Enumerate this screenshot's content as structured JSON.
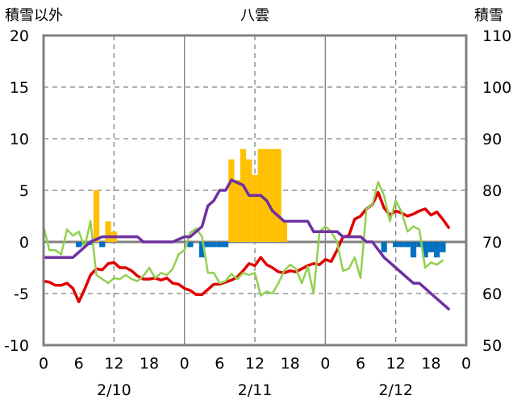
{
  "chart_data": {
    "type": "bar+line",
    "title": "八雲",
    "left_axis_label": "積雪以外",
    "right_axis_label": "積雪",
    "left_ylim": [
      -10,
      20
    ],
    "left_ticks": [
      20,
      15,
      10,
      5,
      0,
      -5,
      -10
    ],
    "right_ylim": [
      50,
      110
    ],
    "right_ticks": [
      110,
      100,
      90,
      80,
      70,
      60,
      50
    ],
    "x_hours": [
      0,
      72
    ],
    "x_tick_labels": [
      "0",
      "6",
      "12",
      "18",
      "0",
      "6",
      "12",
      "18",
      "0",
      "6",
      "12",
      "18",
      "0"
    ],
    "day_labels": [
      "2/10",
      "2/11",
      "2/12"
    ],
    "grid": "dashed vertical at 12h, solid day separators at 24h",
    "colors": {
      "precip_positive": "#FFC000",
      "precip_negative": "#0070C0",
      "red_line": "#E00000",
      "green_line": "#92D050",
      "purple_line": "#7030A0",
      "frame": "#808080"
    },
    "bars": [
      {
        "x": 6,
        "v": -0.5
      },
      {
        "x": 7,
        "v": -0.3
      },
      {
        "x": 8,
        "v": -0.3
      },
      {
        "x": 9,
        "v": 5
      },
      {
        "x": 10,
        "v": -0.5
      },
      {
        "x": 11,
        "v": 2
      },
      {
        "x": 12,
        "v": 1
      },
      {
        "x": 25,
        "v": -0.5
      },
      {
        "x": 27,
        "v": -1.5
      },
      {
        "x": 28,
        "v": -0.5
      },
      {
        "x": 29,
        "v": -0.5
      },
      {
        "x": 30,
        "v": -0.5
      },
      {
        "x": 31,
        "v": -0.5
      },
      {
        "x": 32,
        "v": 8
      },
      {
        "x": 33,
        "v": 6
      },
      {
        "x": 34,
        "v": 9
      },
      {
        "x": 35,
        "v": 8
      },
      {
        "x": 36,
        "v": 6.5
      },
      {
        "x": 37,
        "v": 9
      },
      {
        "x": 38,
        "v": 9
      },
      {
        "x": 39,
        "v": 9
      },
      {
        "x": 40,
        "v": 9
      },
      {
        "x": 41,
        "v": 2
      },
      {
        "x": 58,
        "v": -1
      },
      {
        "x": 60,
        "v": -0.5
      },
      {
        "x": 61,
        "v": -0.5
      },
      {
        "x": 62,
        "v": -0.5
      },
      {
        "x": 63,
        "v": -1.5
      },
      {
        "x": 64,
        "v": -0.5
      },
      {
        "x": 65,
        "v": -1.5
      },
      {
        "x": 66,
        "v": -1
      },
      {
        "x": 67,
        "v": -1.5
      },
      {
        "x": 68,
        "v": -1
      }
    ],
    "series": [
      {
        "axis": "left",
        "color": "#E00000",
        "points": [
          [
            0,
            -3.8
          ],
          [
            1,
            -3.9
          ],
          [
            2,
            -4.2
          ],
          [
            3,
            -4.2
          ],
          [
            4,
            -4.0
          ],
          [
            5,
            -4.5
          ],
          [
            6,
            -5.8
          ],
          [
            7,
            -4.6
          ],
          [
            8,
            -3.2
          ],
          [
            9,
            -2.6
          ],
          [
            10,
            -2.7
          ],
          [
            11,
            -2.1
          ],
          [
            12,
            -2.0
          ],
          [
            13,
            -2.5
          ],
          [
            14,
            -2.5
          ],
          [
            15,
            -2.8
          ],
          [
            16,
            -3.3
          ],
          [
            17,
            -3.6
          ],
          [
            18,
            -3.6
          ],
          [
            19,
            -3.5
          ],
          [
            20,
            -3.7
          ],
          [
            21,
            -3.5
          ],
          [
            22,
            -4.0
          ],
          [
            23,
            -4.1
          ],
          [
            24,
            -4.5
          ],
          [
            25,
            -4.7
          ],
          [
            26,
            -5.1
          ],
          [
            27,
            -5.1
          ],
          [
            28,
            -4.6
          ],
          [
            29,
            -4.1
          ],
          [
            30,
            -4.1
          ],
          [
            31,
            -3.9
          ],
          [
            32,
            -3.7
          ],
          [
            33,
            -3.4
          ],
          [
            34,
            -2.8
          ],
          [
            35,
            -2.1
          ],
          [
            36,
            -2.3
          ],
          [
            37,
            -1.5
          ],
          [
            38,
            -2.2
          ],
          [
            39,
            -2.5
          ],
          [
            40,
            -2.9
          ],
          [
            41,
            -3.0
          ],
          [
            42,
            -2.8
          ],
          [
            43,
            -2.9
          ],
          [
            44,
            -2.6
          ],
          [
            45,
            -2.3
          ],
          [
            46,
            -2.1
          ],
          [
            47,
            -2.2
          ],
          [
            48,
            -1.7
          ],
          [
            49,
            -1.9
          ],
          [
            50,
            -0.8
          ],
          [
            51,
            0.5
          ],
          [
            52,
            0.6
          ],
          [
            53,
            2.2
          ],
          [
            54,
            2.5
          ],
          [
            55,
            3.2
          ],
          [
            56,
            3.6
          ],
          [
            57,
            4.8
          ],
          [
            58,
            3.3
          ],
          [
            59,
            2.6
          ],
          [
            60,
            3.0
          ],
          [
            61,
            2.8
          ],
          [
            62,
            2.5
          ],
          [
            63,
            2.7
          ],
          [
            64,
            3.0
          ],
          [
            65,
            3.2
          ],
          [
            66,
            2.6
          ],
          [
            67,
            2.9
          ],
          [
            68,
            2.2
          ],
          [
            69,
            1.4
          ]
        ]
      },
      {
        "axis": "left",
        "color": "#92D050",
        "points": [
          [
            0,
            1.5
          ],
          [
            1,
            -0.8
          ],
          [
            2,
            -0.8
          ],
          [
            3,
            -1.2
          ],
          [
            4,
            1.2
          ],
          [
            5,
            0.6
          ],
          [
            6,
            1.0
          ],
          [
            7,
            -0.5
          ],
          [
            8,
            2.0
          ],
          [
            9,
            -3.2
          ],
          [
            10,
            -3.6
          ],
          [
            11,
            -4.0
          ],
          [
            12,
            -3.5
          ],
          [
            13,
            -3.6
          ],
          [
            14,
            -3.2
          ],
          [
            15,
            -3.6
          ],
          [
            16,
            -3.8
          ],
          [
            17,
            -3.3
          ],
          [
            18,
            -2.5
          ],
          [
            19,
            -3.5
          ],
          [
            20,
            -3.0
          ],
          [
            21,
            -3.2
          ],
          [
            22,
            -2.6
          ],
          [
            23,
            -1.2
          ],
          [
            24,
            -0.8
          ],
          [
            25,
            0.9
          ],
          [
            26,
            1.3
          ],
          [
            27,
            0.5
          ],
          [
            28,
            -3.0
          ],
          [
            29,
            -3.0
          ],
          [
            30,
            -4.0
          ],
          [
            31,
            -3.8
          ],
          [
            32,
            -3.1
          ],
          [
            33,
            -3.6
          ],
          [
            34,
            -3.0
          ],
          [
            35,
            -3.2
          ],
          [
            36,
            -3.0
          ],
          [
            37,
            -5.2
          ],
          [
            38,
            -4.8
          ],
          [
            39,
            -5.0
          ],
          [
            40,
            -4.0
          ],
          [
            41,
            -2.8
          ],
          [
            42,
            -2.2
          ],
          [
            43,
            -2.6
          ],
          [
            44,
            -4.0
          ],
          [
            45,
            -2.4
          ],
          [
            46,
            -5.0
          ],
          [
            47,
            1.0
          ],
          [
            48,
            1.5
          ],
          [
            49,
            1.0
          ],
          [
            50,
            0.0
          ],
          [
            51,
            -2.8
          ],
          [
            52,
            -2.6
          ],
          [
            53,
            -1.5
          ],
          [
            54,
            -3.5
          ],
          [
            55,
            3.2
          ],
          [
            56,
            3.6
          ],
          [
            57,
            5.8
          ],
          [
            58,
            4.5
          ],
          [
            59,
            2.0
          ],
          [
            60,
            4.0
          ],
          [
            61,
            2.9
          ],
          [
            62,
            1.0
          ],
          [
            63,
            1.5
          ],
          [
            64,
            1.2
          ],
          [
            65,
            -2.5
          ],
          [
            66,
            -2.0
          ],
          [
            67,
            -2.2
          ],
          [
            68,
            -1.8
          ]
        ]
      },
      {
        "axis": "right",
        "color": "#7030A0",
        "points": [
          [
            0,
            67
          ],
          [
            5,
            67
          ],
          [
            6,
            68
          ],
          [
            8,
            70
          ],
          [
            10,
            71
          ],
          [
            12,
            71
          ],
          [
            16,
            71
          ],
          [
            17,
            70
          ],
          [
            22,
            70
          ],
          [
            24,
            71
          ],
          [
            25,
            71
          ],
          [
            27,
            73
          ],
          [
            28,
            77
          ],
          [
            29,
            78
          ],
          [
            30,
            80
          ],
          [
            31,
            80
          ],
          [
            32,
            82
          ],
          [
            34,
            81
          ],
          [
            35,
            79
          ],
          [
            37,
            79
          ],
          [
            38,
            78
          ],
          [
            39,
            76
          ],
          [
            40,
            75
          ],
          [
            41,
            74
          ],
          [
            42,
            74
          ],
          [
            45,
            74
          ],
          [
            46,
            72
          ],
          [
            50,
            72
          ],
          [
            51,
            71
          ],
          [
            54,
            71
          ],
          [
            55,
            70
          ],
          [
            56,
            70
          ],
          [
            58,
            67
          ],
          [
            60,
            65
          ],
          [
            62,
            63
          ],
          [
            63,
            62
          ],
          [
            64,
            62
          ],
          [
            65,
            61
          ],
          [
            66,
            60
          ],
          [
            67,
            59
          ],
          [
            68,
            58
          ],
          [
            69,
            57
          ]
        ]
      }
    ]
  }
}
